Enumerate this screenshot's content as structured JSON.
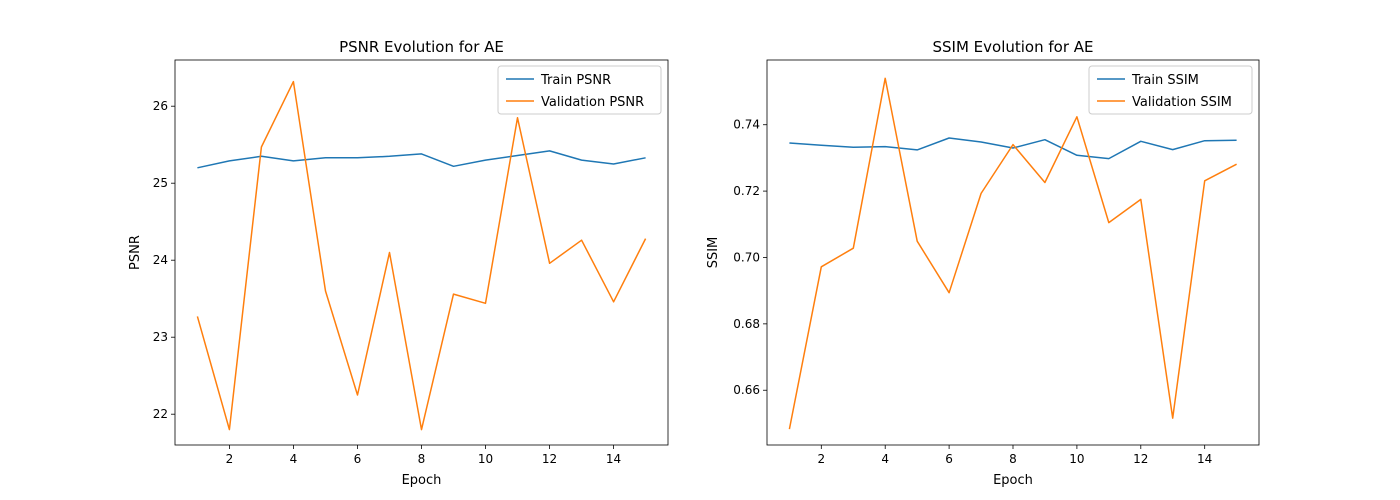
{
  "chart_data": [
    {
      "type": "line",
      "title": "PSNR Evolution for AE",
      "xlabel": "Epoch",
      "ylabel": "PSNR",
      "x": [
        1,
        2,
        3,
        4,
        5,
        6,
        7,
        8,
        9,
        10,
        11,
        12,
        13,
        14,
        15
      ],
      "xlim": [
        0.3,
        15.7
      ],
      "ylim": [
        21.6,
        26.6
      ],
      "xticks": [
        2,
        4,
        6,
        8,
        10,
        12,
        14
      ],
      "yticks": [
        22,
        23,
        24,
        25,
        26
      ],
      "ytick_decimals": 0,
      "legend_position": "top-right",
      "grid": false,
      "series": [
        {
          "name": "Train PSNR",
          "color": "#1f77b4",
          "values": [
            25.2,
            25.29,
            25.35,
            25.29,
            25.33,
            25.33,
            25.35,
            25.38,
            25.22,
            25.3,
            25.36,
            25.42,
            25.3,
            25.25,
            25.33
          ]
        },
        {
          "name": "Validation PSNR",
          "color": "#ff7f0e",
          "values": [
            23.27,
            21.8,
            25.47,
            26.32,
            23.6,
            22.25,
            24.1,
            21.8,
            23.56,
            23.44,
            25.85,
            23.96,
            24.26,
            23.46,
            24.28
          ]
        }
      ]
    },
    {
      "type": "line",
      "title": "SSIM Evolution for AE",
      "xlabel": "Epoch",
      "ylabel": "SSIM",
      "x": [
        1,
        2,
        3,
        4,
        5,
        6,
        7,
        8,
        9,
        10,
        11,
        12,
        13,
        14,
        15
      ],
      "xlim": [
        0.3,
        15.7
      ],
      "ylim": [
        0.6435,
        0.7595
      ],
      "xticks": [
        2,
        4,
        6,
        8,
        10,
        12,
        14
      ],
      "yticks": [
        0.66,
        0.68,
        0.7,
        0.72,
        0.74
      ],
      "ytick_decimals": 2,
      "legend_position": "top-right",
      "grid": false,
      "series": [
        {
          "name": "Train SSIM",
          "color": "#1f77b4",
          "values": [
            0.7345,
            0.7338,
            0.7332,
            0.7334,
            0.7324,
            0.736,
            0.7348,
            0.733,
            0.7355,
            0.7308,
            0.7298,
            0.735,
            0.7325,
            0.7352,
            0.7353
          ]
        },
        {
          "name": "Validation SSIM",
          "color": "#ff7f0e",
          "values": [
            0.6483,
            0.6972,
            0.7028,
            0.754,
            0.7049,
            0.6894,
            0.7193,
            0.734,
            0.7226,
            0.7424,
            0.7105,
            0.7175,
            0.6516,
            0.7231,
            0.7281
          ]
        }
      ]
    }
  ]
}
